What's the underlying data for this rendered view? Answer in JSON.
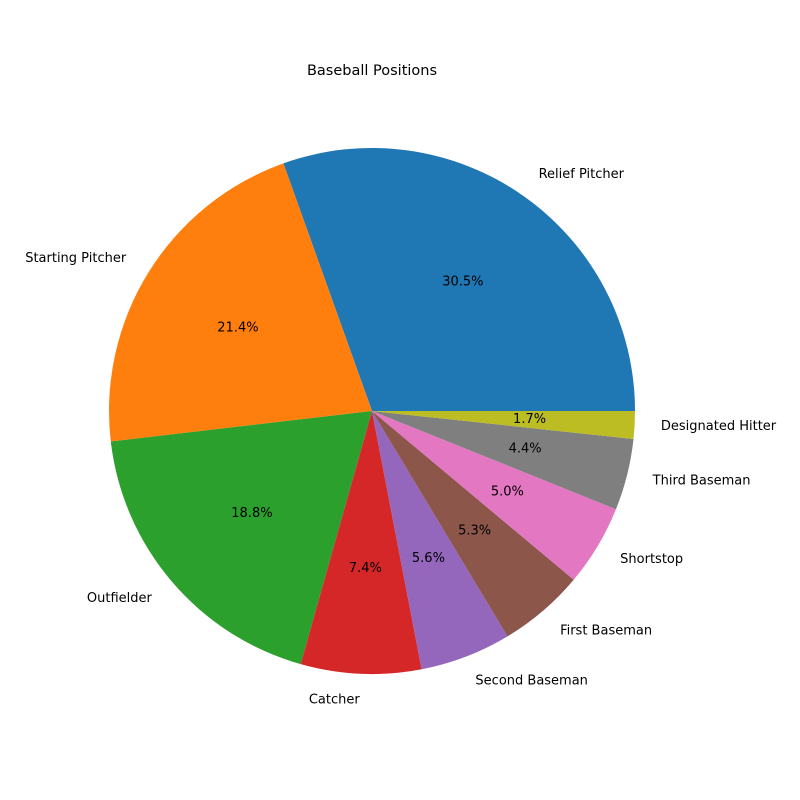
{
  "chart_data": {
    "type": "pie",
    "title": "Baseball Positions",
    "slices": [
      {
        "label": "Relief Pitcher",
        "value": 30.5,
        "display": "30.5%",
        "color": "#1f77b4"
      },
      {
        "label": "Starting Pitcher",
        "value": 21.4,
        "display": "21.4%",
        "color": "#ff7f0e"
      },
      {
        "label": "Outfielder",
        "value": 18.8,
        "display": "18.8%",
        "color": "#2ca02c"
      },
      {
        "label": "Catcher",
        "value": 7.4,
        "display": "7.4%",
        "color": "#d62728"
      },
      {
        "label": "Second Baseman",
        "value": 5.6,
        "display": "5.6%",
        "color": "#9467bd"
      },
      {
        "label": "First Baseman",
        "value": 5.3,
        "display": "5.3%",
        "color": "#8c564b"
      },
      {
        "label": "Shortstop",
        "value": 5.0,
        "display": "5.0%",
        "color": "#e377c2"
      },
      {
        "label": "Third Baseman",
        "value": 4.4,
        "display": "4.4%",
        "color": "#7f7f7f"
      },
      {
        "label": "Designated Hitter",
        "value": 1.7,
        "display": "1.7%",
        "color": "#bcbd22"
      }
    ],
    "start_angle_deg": 0,
    "direction": "counterclockwise",
    "legend": "none"
  }
}
